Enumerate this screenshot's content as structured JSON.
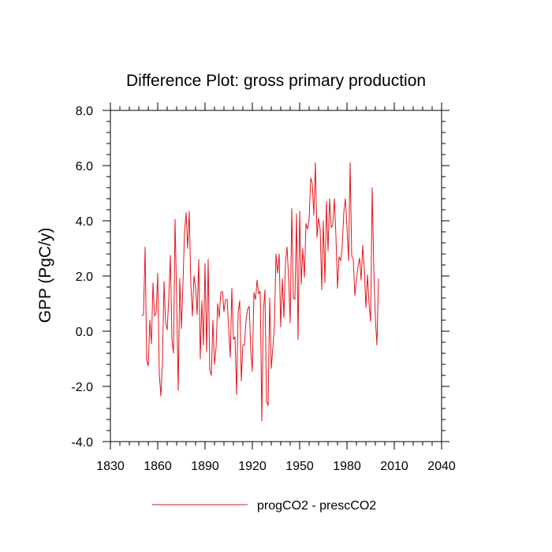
{
  "chart_data": {
    "type": "line",
    "title": "Difference Plot: gross primary production",
    "xlabel": "",
    "ylabel": "GPP  (PgC/y)",
    "xlim": [
      1830,
      2040
    ],
    "ylim": [
      -4.0,
      8.0
    ],
    "x_ticks": [
      1830,
      1860,
      1890,
      1920,
      1950,
      1980,
      2010,
      2040
    ],
    "x_tick_labels": [
      "1830",
      "1860",
      "1890",
      "1920",
      "1950",
      "1980",
      "2010",
      "2040"
    ],
    "y_ticks": [
      -4,
      -2,
      0,
      2,
      4,
      6,
      8
    ],
    "y_tick_labels": [
      "-4.0",
      "-2.0",
      "0.0",
      "2.0",
      "4.0",
      "6.0",
      "8.0"
    ],
    "grid": false,
    "legend_position": "bottom-center",
    "series": [
      {
        "name": "progCO2 - prescCO2",
        "color": "#e4141b",
        "x_start": 1850,
        "x_step": 1,
        "values": [
          0.55,
          0.6,
          3.05,
          -1.05,
          -1.25,
          0.4,
          -0.45,
          1.75,
          0.55,
          0.65,
          2.1,
          -1.55,
          -2.35,
          -1.1,
          1.8,
          0.3,
          0.05,
          1.2,
          2.75,
          -0.3,
          -0.8,
          4.05,
          1.2,
          -2.15,
          1.9,
          0.1,
          1.7,
          3.6,
          4.3,
          3.0,
          4.35,
          1.7,
          0.55,
          2.0,
          1.6,
          0.6,
          2.6,
          -1.0,
          1.1,
          -0.5,
          2.45,
          -0.75,
          2.6,
          -1.4,
          -1.6,
          0.4,
          -1.2,
          -0.6,
          1.0,
          0.5,
          1.4,
          1.45,
          0.7,
          1.15,
          1.15,
          0.1,
          -0.95,
          1.55,
          -0.3,
          -0.2,
          -2.3,
          0.7,
          1.1,
          -1.8,
          -0.5,
          -0.5,
          0.4,
          0.8,
          0.9,
          -0.7,
          -1.45,
          1.4,
          1.15,
          1.85,
          1.35,
          1.45,
          -3.25,
          0.75,
          1.5,
          -2.55,
          -2.7,
          1.2,
          -1.35,
          -0.6,
          0.2,
          2.8,
          2.1,
          2.8,
          0.15,
          1.9,
          0.5,
          2.5,
          3.05,
          1.9,
          0.3,
          4.45,
          1.2,
          1.15,
          4.25,
          -0.3,
          4.35,
          1.7,
          3.0,
          1.95,
          3.9,
          3.7,
          4.05,
          5.55,
          5.35,
          4.2,
          6.1,
          3.4,
          4.1,
          3.7,
          1.5,
          4.0,
          1.75,
          4.7,
          2.9,
          4.8,
          3.75,
          3.85,
          4.8,
          3.45,
          1.55,
          2.7,
          2.55,
          3.1,
          4.3,
          4.8,
          3.8,
          2.55,
          6.1,
          2.75,
          2.6,
          1.3,
          1.85,
          2.35,
          2.65,
          1.85,
          3.1,
          2.25,
          0.85,
          2.05,
          1.0,
          0.35,
          5.2,
          2.3,
          0.45,
          -0.5,
          1.9
        ]
      }
    ]
  }
}
